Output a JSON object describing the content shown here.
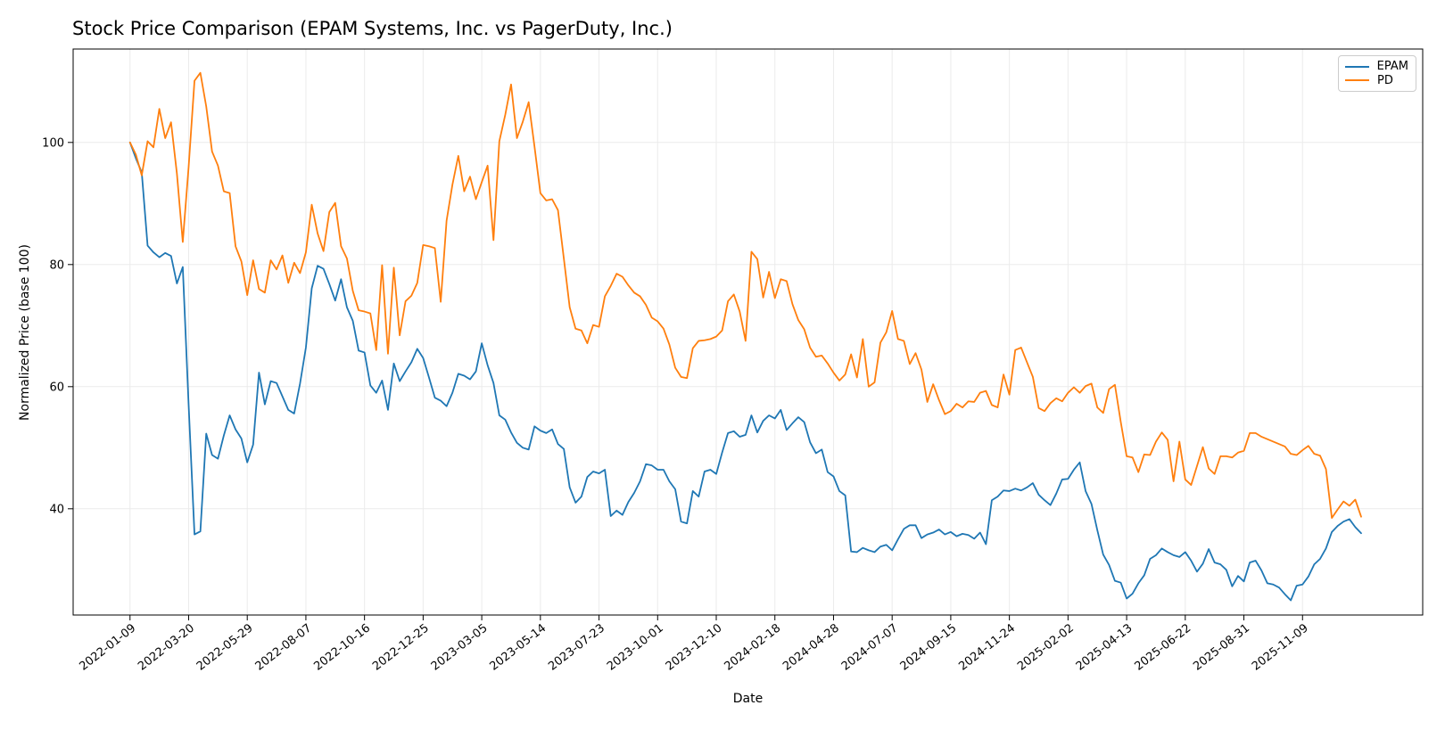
{
  "chart_data": {
    "type": "line",
    "title": "Stock Price Comparison (EPAM Systems, Inc. vs PagerDuty, Inc.)",
    "xlabel": "Date",
    "ylabel": "Normalized Price (base 100)",
    "x_start": "2022-01-09",
    "x_step_days": 7,
    "x_tick_weeks": [
      0,
      10,
      20,
      30,
      40,
      50,
      60,
      70,
      80,
      90,
      100,
      110,
      120,
      130,
      140,
      150,
      160,
      170,
      180,
      190,
      200
    ],
    "x_tick_labels": [
      "2022-01-09",
      "2022-03-20",
      "2022-05-29",
      "2022-08-07",
      "2022-10-16",
      "2022-12-25",
      "2023-03-05",
      "2023-05-14",
      "2023-07-23",
      "2023-10-01",
      "2023-12-10",
      "2024-02-18",
      "2024-04-28",
      "2024-07-07",
      "2024-09-15",
      "2024-11-24",
      "2025-02-02",
      "2025-04-13",
      "2025-06-22",
      "2025-08-31",
      "2025-11-09"
    ],
    "y_ticks": [
      40,
      60,
      80,
      100
    ],
    "ylim": [
      22.6,
      115.3
    ],
    "xlim_weeks": [
      -9.7,
      220.5
    ],
    "grid": true,
    "legend_position": "upper right",
    "series": [
      {
        "name": "EPAM",
        "color": "#1f77b4",
        "values": [
          100.0,
          97.4,
          95.1,
          83.1,
          82.0,
          81.2,
          81.9,
          81.4,
          76.9,
          79.6,
          57.0,
          35.8,
          36.3,
          52.3,
          48.8,
          48.2,
          52.0,
          55.3,
          53.0,
          51.5,
          47.6,
          50.5,
          62.3,
          57.1,
          60.9,
          60.6,
          58.4,
          56.2,
          55.6,
          60.5,
          66.4,
          76.1,
          79.8,
          79.3,
          76.8,
          74.1,
          77.6,
          73.0,
          70.8,
          65.9,
          65.6,
          60.2,
          59.0,
          61.0,
          56.2,
          63.8,
          60.9,
          62.5,
          64.0,
          66.2,
          64.7,
          61.5,
          58.2,
          57.7,
          56.8,
          59.0,
          62.1,
          61.8,
          61.2,
          62.5,
          67.1,
          63.5,
          60.6,
          55.3,
          54.6,
          52.5,
          50.8,
          50.0,
          49.7,
          53.5,
          52.8,
          52.4,
          53.0,
          50.6,
          49.8,
          43.5,
          41.0,
          42.0,
          45.2,
          46.1,
          45.8,
          46.4,
          38.8,
          39.7,
          39.0,
          41.1,
          42.6,
          44.5,
          47.3,
          47.1,
          46.4,
          46.4,
          44.5,
          43.2,
          37.9,
          37.6,
          42.9,
          42.0,
          46.1,
          46.4,
          45.7,
          49.2,
          52.4,
          52.7,
          51.8,
          52.1,
          55.3,
          52.5,
          54.4,
          55.3,
          54.8,
          56.2,
          52.9,
          54.0,
          55.0,
          54.2,
          50.9,
          49.1,
          49.7,
          46.0,
          45.3,
          42.9,
          42.2,
          33.0,
          32.9,
          33.6,
          33.2,
          32.9,
          33.8,
          34.1,
          33.2,
          35.0,
          36.7,
          37.3,
          37.3,
          35.2,
          35.8,
          36.1,
          36.6,
          35.8,
          36.2,
          35.5,
          35.9,
          35.7,
          35.1,
          36.1,
          34.2,
          41.4,
          42.0,
          43.0,
          42.9,
          43.3,
          43.0,
          43.5,
          44.2,
          42.3,
          41.4,
          40.6,
          42.5,
          44.8,
          44.9,
          46.4,
          47.6,
          42.9,
          40.8,
          36.5,
          32.5,
          30.8,
          28.2,
          27.9,
          25.3,
          26.1,
          27.8,
          29.1,
          31.8,
          32.4,
          33.5,
          32.9,
          32.4,
          32.1,
          32.9,
          31.5,
          29.7,
          31.0,
          33.4,
          31.2,
          30.9,
          30.0,
          27.3,
          29.0,
          28.1,
          31.2,
          31.5,
          29.9,
          27.8,
          27.6,
          27.1,
          26.0,
          25.0,
          27.4,
          27.6,
          28.9,
          30.9,
          31.8,
          33.5,
          36.2,
          37.2,
          37.9,
          38.3,
          37.0,
          36.0
        ]
      },
      {
        "name": "PD",
        "color": "#ff7f0e",
        "values": [
          100.0,
          98.0,
          94.6,
          100.2,
          99.2,
          105.5,
          100.7,
          103.3,
          94.9,
          83.7,
          96.0,
          110.1,
          111.4,
          105.9,
          98.5,
          96.2,
          92.0,
          91.7,
          83.0,
          80.5,
          75.0,
          80.7,
          76.0,
          75.4,
          80.7,
          79.2,
          81.5,
          77.0,
          80.3,
          78.6,
          82.0,
          89.8,
          85.1,
          82.2,
          88.6,
          90.1,
          83.0,
          81.0,
          75.7,
          72.5,
          72.3,
          72.0,
          66.0,
          79.9,
          65.4,
          79.5,
          68.4,
          74.0,
          74.9,
          77.0,
          83.2,
          83.0,
          82.7,
          73.9,
          87.2,
          93.1,
          97.8,
          92.0,
          94.4,
          90.7,
          93.5,
          96.2,
          84.0,
          100.2,
          104.5,
          109.5,
          100.7,
          103.4,
          106.6,
          99.3,
          91.7,
          90.5,
          90.7,
          88.9,
          81.0,
          73.0,
          69.5,
          69.2,
          67.1,
          70.1,
          69.8,
          74.8,
          76.5,
          78.5,
          78.0,
          76.6,
          75.4,
          74.8,
          73.4,
          71.3,
          70.7,
          69.5,
          66.9,
          63.1,
          61.6,
          61.4,
          66.3,
          67.5,
          67.6,
          67.8,
          68.2,
          69.2,
          74.0,
          75.1,
          72.3,
          67.5,
          82.1,
          80.9,
          74.6,
          78.8,
          74.5,
          77.6,
          77.3,
          73.5,
          70.9,
          69.4,
          66.4,
          64.9,
          65.1,
          63.8,
          62.3,
          61.0,
          62.0,
          65.3,
          61.5,
          67.8,
          60.0,
          60.7,
          67.2,
          68.9,
          72.4,
          67.8,
          67.5,
          63.7,
          65.5,
          62.8,
          57.5,
          60.4,
          57.8,
          55.5,
          56.0,
          57.2,
          56.6,
          57.6,
          57.5,
          59.0,
          59.3,
          57.0,
          56.6,
          62.0,
          58.7,
          66.0,
          66.4,
          64.0,
          61.6,
          56.5,
          56.0,
          57.3,
          58.1,
          57.6,
          59.0,
          59.9,
          59.0,
          60.1,
          60.5,
          56.6,
          55.7,
          59.6,
          60.3,
          54.2,
          48.6,
          48.4,
          46.0,
          48.9,
          48.8,
          51.0,
          52.5,
          51.3,
          44.5,
          51.0,
          44.8,
          43.9,
          47.0,
          50.1,
          46.6,
          45.7,
          48.6,
          48.6,
          48.4,
          49.2,
          49.5,
          52.4,
          52.4,
          51.8,
          51.4,
          51.0,
          50.6,
          50.2,
          49.0,
          48.8,
          49.6,
          50.3,
          49.0,
          48.7,
          46.5,
          38.5,
          39.9,
          41.2,
          40.5,
          41.5,
          38.7
        ]
      }
    ]
  }
}
